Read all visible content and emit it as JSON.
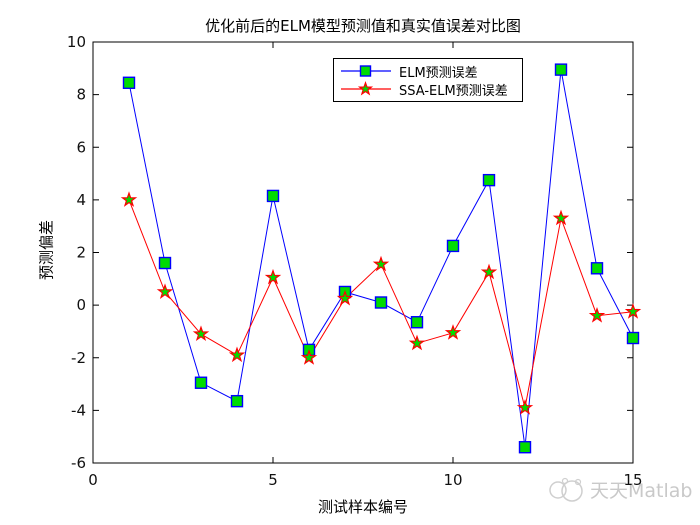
{
  "figure": {
    "watermark_text": "天天Matlab"
  },
  "chart_data": {
    "type": "line",
    "title": "优化前后的ELM模型预测值和真实值误差对比图",
    "xlabel": "测试样本编号",
    "ylabel": "预测偏差",
    "xlim": [
      0,
      15
    ],
    "ylim": [
      -6,
      10
    ],
    "xticks": [
      0,
      5,
      10,
      15
    ],
    "yticks": [
      -6,
      -4,
      -2,
      0,
      2,
      4,
      6,
      8,
      10
    ],
    "grid": false,
    "legend_position": "top-center-inside",
    "x": [
      1,
      2,
      3,
      4,
      5,
      6,
      7,
      8,
      9,
      10,
      11,
      12,
      13,
      14,
      15
    ],
    "series": [
      {
        "name": "ELM预测误差",
        "marker": "square",
        "line_color": "#0000ff",
        "marker_fill": "#00dc00",
        "marker_edge": "#0000ff",
        "values": [
          8.45,
          1.6,
          -2.95,
          -3.65,
          4.15,
          -1.7,
          0.5,
          0.1,
          -0.65,
          2.25,
          4.75,
          -5.4,
          8.95,
          1.4,
          -1.25
        ]
      },
      {
        "name": "SSA-ELM预测误差",
        "marker": "pentagram",
        "line_color": "#ff0000",
        "marker_fill": "#00dc00",
        "marker_edge": "#ff0000",
        "values": [
          4.0,
          0.5,
          -1.1,
          -1.9,
          1.05,
          -2.0,
          0.25,
          1.55,
          -1.45,
          -1.05,
          1.25,
          -3.9,
          3.3,
          -0.4,
          -0.25
        ]
      }
    ],
    "axis_color": "#000000",
    "tick_label_color": "#111111",
    "watermark_color": "#c9c9c9"
  }
}
